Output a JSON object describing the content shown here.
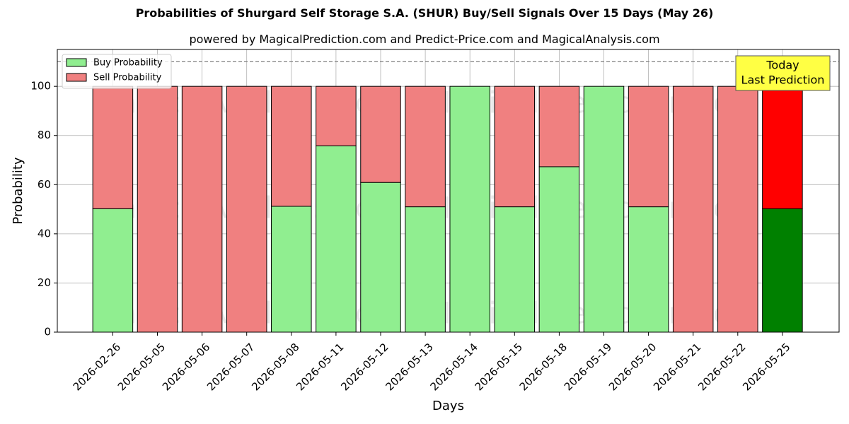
{
  "chart_data": {
    "type": "bar",
    "title": "Probabilities of Shurgard Self Storage S.A. (SHUR) Buy/Sell Signals Over 15 Days (May 26)",
    "subtitle": "powered by MagicalPrediction.com and Predict-Price.com and MagicalAnalysis.com",
    "xlabel": "Days",
    "ylabel": "Probability",
    "ylim": [
      0,
      115
    ],
    "yticks": [
      0,
      20,
      40,
      60,
      80,
      100
    ],
    "grid": true,
    "legend_position": "top-left",
    "categories": [
      "2026-02-26",
      "2026-05-05",
      "2026-05-06",
      "2026-05-07",
      "2026-05-08",
      "2026-05-11",
      "2026-05-12",
      "2026-05-13",
      "2026-05-14",
      "2026-05-15",
      "2026-05-18",
      "2026-05-19",
      "2026-05-20",
      "2026-05-21",
      "2026-05-22",
      "2026-05-25"
    ],
    "series": [
      {
        "name": "Buy Probability",
        "color": "#90ee90",
        "values": [
          50.2,
          0,
          0,
          0,
          51.2,
          75.8,
          60.9,
          51.0,
          100,
          51.0,
          67.3,
          100,
          51.0,
          0,
          0,
          50.2
        ]
      },
      {
        "name": "Sell Probability",
        "color": "#f08080",
        "values": [
          49.8,
          100,
          100,
          100,
          48.8,
          24.2,
          39.1,
          49.0,
          0,
          49.0,
          32.7,
          0,
          49.0,
          100,
          100,
          49.8
        ]
      }
    ],
    "highlight": {
      "index": 15,
      "buy_color": "#008000",
      "sell_color": "#ff0000"
    },
    "reference_line": {
      "y": 110,
      "style": "dashed",
      "color": "#808080"
    },
    "annotation": {
      "lines": [
        "Today",
        "Last Prediction"
      ],
      "background": "#ffff44"
    },
    "watermark_text": [
      "MagicalAnalysis.com",
      "MagicalPrediction.com"
    ]
  }
}
